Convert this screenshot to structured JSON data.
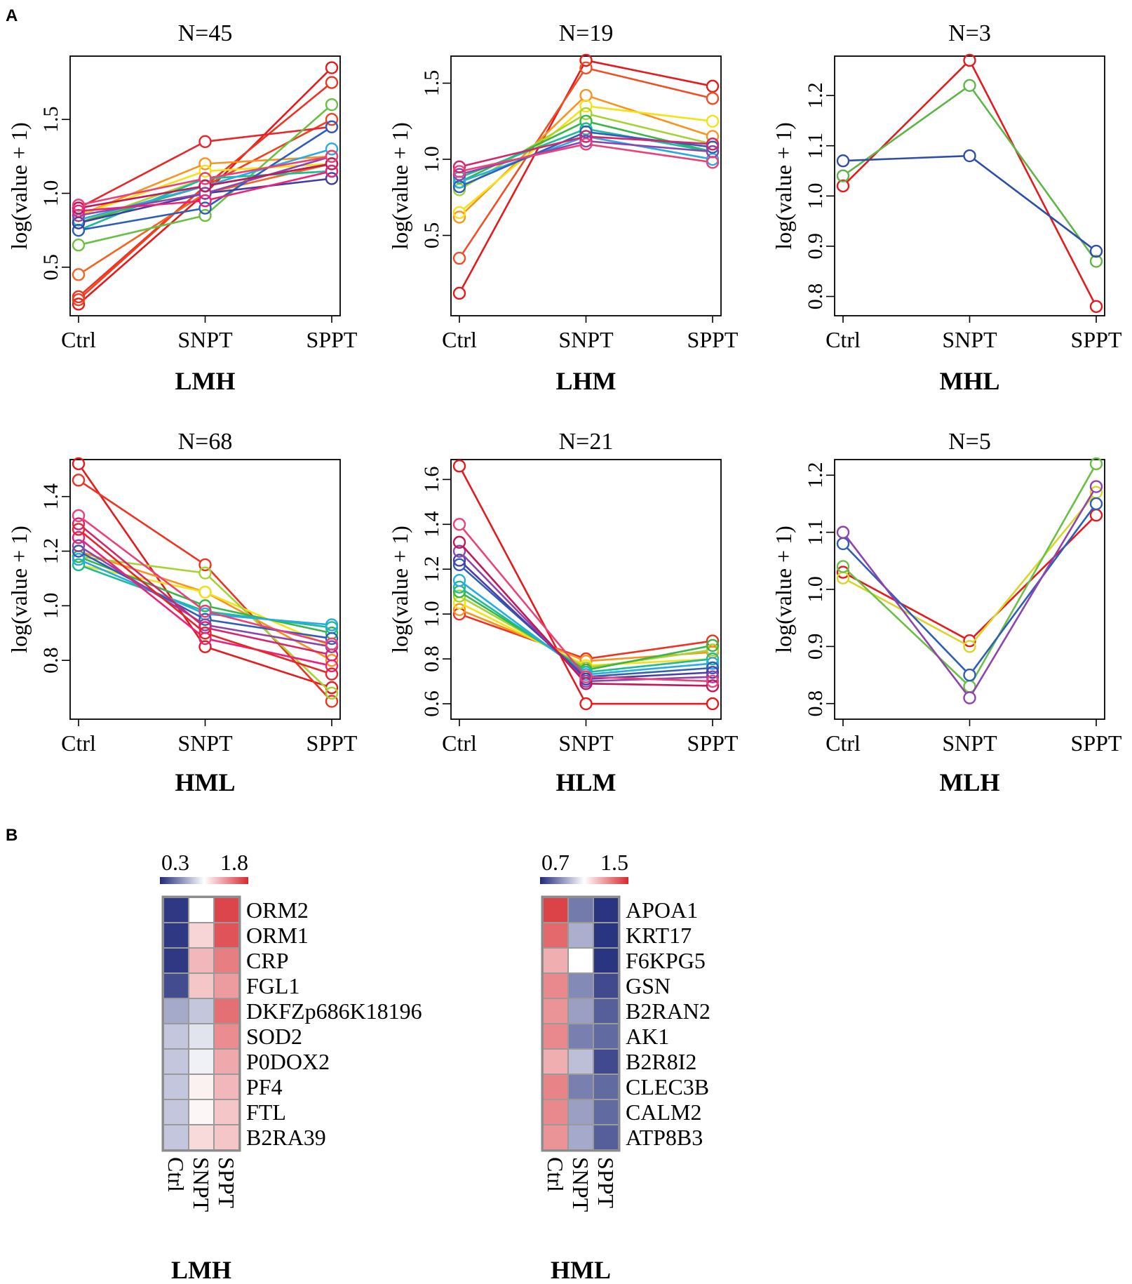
{
  "figure": {
    "panel_a_label": "A",
    "panel_b_label": "B"
  },
  "chart_data": [
    {
      "type": "line",
      "title": "N=45",
      "xlabel": "LMH",
      "ylabel": "log(value + 1)",
      "categories": [
        "Ctrl",
        "SNPT",
        "SPPT"
      ],
      "y_ticks": [
        "0.5",
        "1.0",
        "1.5"
      ],
      "y_tick_values": [
        0.5,
        1.0,
        1.5
      ],
      "ylim": [
        0.2,
        1.9
      ],
      "series": [
        {
          "name": "red-1",
          "color": "#e41a1c",
          "values": [
            0.25,
            1.0,
            1.85
          ]
        },
        {
          "name": "red-2",
          "color": "#ee3322",
          "values": [
            0.3,
            1.05,
            1.75
          ]
        },
        {
          "name": "red-3",
          "color": "#f0401f",
          "values": [
            0.28,
            1.05,
            1.5
          ]
        },
        {
          "name": "orange-1",
          "color": "#f26522",
          "values": [
            0.45,
            1.0,
            1.2
          ]
        },
        {
          "name": "red-4",
          "color": "#e8262a",
          "values": [
            0.9,
            1.35,
            1.45
          ]
        },
        {
          "name": "orange-2",
          "color": "#f7941d",
          "values": [
            0.85,
            1.2,
            1.25
          ]
        },
        {
          "name": "yellow-1",
          "color": "#f5e216",
          "values": [
            0.85,
            1.15,
            1.2
          ]
        },
        {
          "name": "lime-1",
          "color": "#a6d232",
          "values": [
            0.8,
            1.1,
            1.15
          ]
        },
        {
          "name": "green-1",
          "color": "#6ac045",
          "values": [
            0.65,
            0.85,
            1.6
          ]
        },
        {
          "name": "green-2",
          "color": "#39b54a",
          "values": [
            0.8,
            1.05,
            1.2
          ]
        },
        {
          "name": "teal-1",
          "color": "#1bbc9b",
          "values": [
            0.75,
            1.1,
            1.15
          ]
        },
        {
          "name": "cyan-1",
          "color": "#29abe2",
          "values": [
            0.82,
            1.05,
            1.3
          ]
        },
        {
          "name": "blue-1",
          "color": "#2e5fb8",
          "values": [
            0.75,
            0.9,
            1.45
          ]
        },
        {
          "name": "indigo-1",
          "color": "#3f3f9f",
          "values": [
            0.8,
            1.0,
            1.1
          ]
        },
        {
          "name": "violet-1",
          "color": "#8e44ad",
          "values": [
            0.85,
            1.0,
            1.25
          ]
        },
        {
          "name": "magenta-1",
          "color": "#c2185b",
          "values": [
            0.9,
            1.05,
            1.2
          ]
        },
        {
          "name": "pink-1",
          "color": "#ec407a",
          "values": [
            0.92,
            1.1,
            1.25
          ]
        },
        {
          "name": "pink-2",
          "color": "#f0207a",
          "values": [
            0.88,
            0.95,
            1.15
          ]
        }
      ]
    },
    {
      "type": "line",
      "title": "N=19",
      "xlabel": "LHM",
      "ylabel": "log(value + 1)",
      "categories": [
        "Ctrl",
        "SNPT",
        "SPPT"
      ],
      "y_ticks": [
        "0.5",
        "1.0",
        "1.5"
      ],
      "y_tick_values": [
        0.5,
        1.0,
        1.5
      ],
      "ylim": [
        0.0,
        1.65
      ],
      "series": [
        {
          "name": "red-1",
          "color": "#e41a1c",
          "values": [
            0.12,
            1.65,
            1.48
          ]
        },
        {
          "name": "orange-red",
          "color": "#f04e23",
          "values": [
            0.35,
            1.6,
            1.4
          ]
        },
        {
          "name": "orange",
          "color": "#f7941d",
          "values": [
            0.62,
            1.42,
            1.15
          ]
        },
        {
          "name": "yellow",
          "color": "#f5e216",
          "values": [
            0.65,
            1.35,
            1.25
          ]
        },
        {
          "name": "lime",
          "color": "#a6d232",
          "values": [
            0.8,
            1.3,
            1.1
          ]
        },
        {
          "name": "green",
          "color": "#39b54a",
          "values": [
            0.85,
            1.25,
            1.05
          ]
        },
        {
          "name": "teal",
          "color": "#1bbc9b",
          "values": [
            0.88,
            1.2,
            1.05
          ]
        },
        {
          "name": "cyan",
          "color": "#29abe2",
          "values": [
            0.85,
            1.15,
            1.0
          ]
        },
        {
          "name": "blue",
          "color": "#2e5fb8",
          "values": [
            0.82,
            1.18,
            1.08
          ]
        },
        {
          "name": "violet",
          "color": "#8e44ad",
          "values": [
            0.9,
            1.12,
            1.05
          ]
        },
        {
          "name": "magenta",
          "color": "#d6246e",
          "values": [
            0.95,
            1.15,
            1.1
          ]
        },
        {
          "name": "pink",
          "color": "#ec407a",
          "values": [
            0.92,
            1.1,
            0.98
          ]
        }
      ]
    },
    {
      "type": "line",
      "title": "N=3",
      "xlabel": "MHL",
      "ylabel": "log(value + 1)",
      "categories": [
        "Ctrl",
        "SNPT",
        "SPPT"
      ],
      "y_ticks": [
        "0.8",
        "0.9",
        "1.0",
        "1.1",
        "1.2"
      ],
      "y_tick_values": [
        0.8,
        0.9,
        1.0,
        1.1,
        1.2
      ],
      "ylim": [
        0.77,
        1.27
      ],
      "series": [
        {
          "name": "red",
          "color": "#e41a1c",
          "values": [
            1.02,
            1.27,
            0.78
          ]
        },
        {
          "name": "green",
          "color": "#5fb548",
          "values": [
            1.04,
            1.22,
            0.87
          ]
        },
        {
          "name": "blue",
          "color": "#2e4fa8",
          "values": [
            1.07,
            1.08,
            0.89
          ]
        }
      ]
    },
    {
      "type": "line",
      "title": "N=68",
      "xlabel": "HML",
      "ylabel": "log(value + 1)",
      "categories": [
        "Ctrl",
        "SNPT",
        "SPPT"
      ],
      "y_ticks": [
        "0.8",
        "1.0",
        "1.2",
        "1.4"
      ],
      "y_tick_values": [
        0.8,
        1.0,
        1.2,
        1.4
      ],
      "ylim": [
        0.6,
        1.52
      ],
      "series": [
        {
          "name": "red-1",
          "color": "#e41a1c",
          "values": [
            1.52,
            0.85,
            0.7
          ]
        },
        {
          "name": "red-2",
          "color": "#ee3322",
          "values": [
            1.46,
            1.15,
            0.65
          ]
        },
        {
          "name": "orange",
          "color": "#f7941d",
          "values": [
            1.2,
            1.05,
            0.8
          ]
        },
        {
          "name": "yellow",
          "color": "#f5e216",
          "values": [
            1.15,
            1.05,
            0.85
          ]
        },
        {
          "name": "lime",
          "color": "#a6d232",
          "values": [
            1.18,
            1.12,
            0.68
          ]
        },
        {
          "name": "green",
          "color": "#39b54a",
          "values": [
            1.18,
            1.0,
            0.9
          ]
        },
        {
          "name": "teal",
          "color": "#1bbc9b",
          "values": [
            1.15,
            0.98,
            0.92
          ]
        },
        {
          "name": "cyan",
          "color": "#29abe2",
          "values": [
            1.17,
            0.97,
            0.93
          ]
        },
        {
          "name": "blue",
          "color": "#2e5fb8",
          "values": [
            1.2,
            0.95,
            0.88
          ]
        },
        {
          "name": "violet",
          "color": "#8e44ad",
          "values": [
            1.22,
            0.93,
            0.85
          ]
        },
        {
          "name": "magenta",
          "color": "#d6246e",
          "values": [
            1.3,
            0.92,
            0.82
          ]
        },
        {
          "name": "pink-1",
          "color": "#ec407a",
          "values": [
            1.33,
            0.98,
            0.86
          ]
        },
        {
          "name": "pink-2",
          "color": "#f0207a",
          "values": [
            1.25,
            0.88,
            0.78
          ]
        },
        {
          "name": "red-3",
          "color": "#e8262a",
          "values": [
            1.28,
            0.9,
            0.75
          ]
        }
      ]
    },
    {
      "type": "line",
      "title": "N=21",
      "xlabel": "HLM",
      "ylabel": "log(value + 1)",
      "categories": [
        "Ctrl",
        "SNPT",
        "SPPT"
      ],
      "y_ticks": [
        "0.6",
        "0.8",
        "1.0",
        "1.2",
        "1.4",
        "1.6"
      ],
      "y_tick_values": [
        0.6,
        0.8,
        1.0,
        1.2,
        1.4,
        1.6
      ],
      "ylim": [
        0.55,
        1.67
      ],
      "series": [
        {
          "name": "red-1",
          "color": "#e41a1c",
          "values": [
            1.66,
            0.6,
            0.6
          ]
        },
        {
          "name": "red-2",
          "color": "#ee3322",
          "values": [
            1.0,
            0.8,
            0.88
          ]
        },
        {
          "name": "orange",
          "color": "#f7941d",
          "values": [
            1.02,
            0.79,
            0.83
          ]
        },
        {
          "name": "yellow",
          "color": "#f5e216",
          "values": [
            1.05,
            0.77,
            0.8
          ]
        },
        {
          "name": "lime",
          "color": "#a6d232",
          "values": [
            1.08,
            0.76,
            0.84
          ]
        },
        {
          "name": "green",
          "color": "#39b54a",
          "values": [
            1.1,
            0.75,
            0.86
          ]
        },
        {
          "name": "teal",
          "color": "#1bbc9b",
          "values": [
            1.12,
            0.74,
            0.8
          ]
        },
        {
          "name": "cyan",
          "color": "#29abe2",
          "values": [
            1.15,
            0.73,
            0.78
          ]
        },
        {
          "name": "blue",
          "color": "#2e5fb8",
          "values": [
            1.22,
            0.72,
            0.76
          ]
        },
        {
          "name": "indigo",
          "color": "#4a3fa8",
          "values": [
            1.24,
            0.71,
            0.74
          ]
        },
        {
          "name": "violet",
          "color": "#8e44ad",
          "values": [
            1.28,
            0.7,
            0.72
          ]
        },
        {
          "name": "magenta",
          "color": "#c2185b",
          "values": [
            1.32,
            0.69,
            0.68
          ]
        },
        {
          "name": "pink",
          "color": "#ec407a",
          "values": [
            1.4,
            0.72,
            0.7
          ]
        }
      ]
    },
    {
      "type": "line",
      "title": "N=5",
      "xlabel": "MLH",
      "ylabel": "log(value + 1)",
      "categories": [
        "Ctrl",
        "SNPT",
        "SPPT"
      ],
      "y_ticks": [
        "0.8",
        "0.9",
        "1.0",
        "1.1",
        "1.2"
      ],
      "y_tick_values": [
        0.8,
        0.9,
        1.0,
        1.1,
        1.2
      ],
      "ylim": [
        0.78,
        1.22
      ],
      "series": [
        {
          "name": "red",
          "color": "#e41a1c",
          "values": [
            1.03,
            0.91,
            1.13
          ]
        },
        {
          "name": "yellow",
          "color": "#d8d62a",
          "values": [
            1.02,
            0.9,
            1.17
          ]
        },
        {
          "name": "green",
          "color": "#6ac045",
          "values": [
            1.04,
            0.83,
            1.22
          ]
        },
        {
          "name": "blue",
          "color": "#2e5fb8",
          "values": [
            1.08,
            0.85,
            1.15
          ]
        },
        {
          "name": "purple",
          "color": "#8e44ad",
          "values": [
            1.1,
            0.81,
            1.18
          ]
        }
      ]
    },
    {
      "type": "heatmap",
      "xlabel": "LMH",
      "colorbar_min": "0.3",
      "colorbar_max": "1.8",
      "scale": [
        0.3,
        1.8
      ],
      "columns": [
        "Ctrl",
        "SNPT",
        "SPPT"
      ],
      "rows": [
        "ORM2",
        "ORM1",
        "CRP",
        "FGL1",
        "DKFZp686K18196",
        "SOD2",
        "P0DOX2",
        "PF4",
        "FTL",
        "B2RA39"
      ],
      "values": [
        [
          0.35,
          1.05,
          1.7
        ],
        [
          0.35,
          1.2,
          1.65
        ],
        [
          0.35,
          1.3,
          1.5
        ],
        [
          0.42,
          1.25,
          1.4
        ],
        [
          0.75,
          0.85,
          1.55
        ],
        [
          0.85,
          0.95,
          1.45
        ],
        [
          0.85,
          1.0,
          1.35
        ],
        [
          0.85,
          1.1,
          1.3
        ],
        [
          0.85,
          1.08,
          1.25
        ],
        [
          0.85,
          1.18,
          1.25
        ]
      ]
    },
    {
      "type": "heatmap",
      "xlabel": "HML",
      "colorbar_min": "0.7",
      "colorbar_max": "1.5",
      "scale": [
        0.7,
        1.5
      ],
      "columns": [
        "Ctrl",
        "SNPT",
        "SPPT"
      ],
      "rows": [
        "APOA1",
        "KRT17",
        "F6KPG5",
        "GSN",
        "B2RAN2",
        "AK1",
        "B2R8I2",
        "CLEC3B",
        "CALM2",
        "ATP8B3"
      ],
      "values": [
        [
          1.45,
          0.85,
          0.72
        ],
        [
          1.38,
          0.95,
          0.72
        ],
        [
          1.25,
          1.1,
          0.72
        ],
        [
          1.32,
          0.88,
          0.76
        ],
        [
          1.3,
          0.92,
          0.8
        ],
        [
          1.32,
          0.86,
          0.82
        ],
        [
          1.25,
          0.98,
          0.76
        ],
        [
          1.33,
          0.86,
          0.82
        ],
        [
          1.32,
          0.92,
          0.82
        ],
        [
          1.3,
          0.94,
          0.8
        ]
      ]
    }
  ]
}
